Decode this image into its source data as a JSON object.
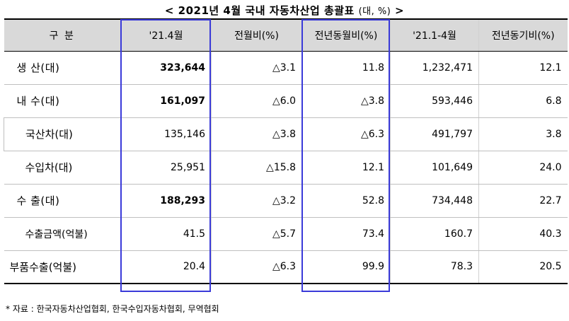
{
  "title": "< 2021년 4월 국내 자동차산업 총괄표",
  "title_unit": "(대, %)",
  "title_end": ">",
  "headers": [
    "구    분",
    "'21.4월",
    "전월비(%)",
    "전년동월비(%)",
    "'21.1-4월",
    "전년동기비(%)"
  ],
  "rows": [
    {
      "label": "생    산(대)",
      "values": [
        "323,644",
        "△3.1",
        "11.8",
        "1,232,471",
        "12.1"
      ]
    },
    {
      "label": "내    수(대)",
      "values": [
        "161,097",
        "△6.0",
        "△3.8",
        "593,446",
        "6.8"
      ]
    },
    {
      "label": "국산차(대)",
      "values": [
        "135,146",
        "△3.8",
        "△6.3",
        "491,797",
        "3.8"
      ]
    },
    {
      "label": "수입차(대)",
      "values": [
        "25,951",
        "△15.8",
        "12.1",
        "101,649",
        "24.0"
      ]
    },
    {
      "label": "수    출(대)",
      "values": [
        "188,293",
        "△3.2",
        "52.8",
        "734,448",
        "22.7"
      ]
    },
    {
      "label": "수출금액(억불)",
      "values": [
        "41.5",
        "△5.7",
        "73.4",
        "160.7",
        "40.3"
      ]
    },
    {
      "label": "부품수출(억불)",
      "values": [
        "20.4",
        "△6.3",
        "99.9",
        "78.3",
        "20.5"
      ]
    }
  ],
  "note": "* 자료 : 한국자동차산업협회, 한국수입자동차협회, 무역협회"
}
